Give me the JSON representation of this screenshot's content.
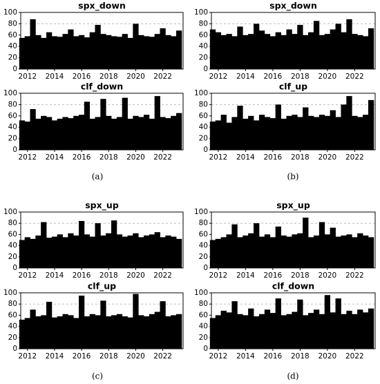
{
  "chart_data": [
    {
      "type": "bar",
      "title": "spx_down",
      "color": "#000000",
      "xlim": [
        2011.5,
        2023.5
      ],
      "ylim": [
        0,
        100
      ],
      "xticks": [
        2012,
        2014,
        2016,
        2018,
        2020,
        2022
      ],
      "yticks": [
        0,
        20,
        40,
        60,
        80,
        100
      ],
      "hline": 80,
      "x": [
        2011.6,
        2012.0,
        2012.4,
        2012.8,
        2013.2,
        2013.6,
        2014.0,
        2014.4,
        2014.8,
        2015.2,
        2015.6,
        2016.0,
        2016.4,
        2016.8,
        2017.2,
        2017.6,
        2018.0,
        2018.4,
        2018.8,
        2019.2,
        2019.6,
        2020.0,
        2020.4,
        2020.8,
        2021.2,
        2021.6,
        2022.0,
        2022.4,
        2022.8,
        2023.2
      ],
      "values": [
        55,
        58,
        88,
        60,
        55,
        65,
        58,
        57,
        62,
        70,
        58,
        60,
        56,
        65,
        78,
        62,
        60,
        58,
        57,
        62,
        55,
        80,
        60,
        58,
        57,
        62,
        72,
        60,
        58,
        68
      ]
    },
    {
      "type": "bar",
      "title": "clf_down",
      "color": "#000000",
      "xlim": [
        2011.5,
        2023.5
      ],
      "ylim": [
        0,
        100
      ],
      "xticks": [
        2012,
        2014,
        2016,
        2018,
        2020,
        2022
      ],
      "yticks": [
        0,
        20,
        40,
        60,
        80,
        100
      ],
      "hline": 80,
      "x": [
        2011.6,
        2012.0,
        2012.4,
        2012.8,
        2013.2,
        2013.6,
        2014.0,
        2014.4,
        2014.8,
        2015.2,
        2015.6,
        2016.0,
        2016.4,
        2016.8,
        2017.2,
        2017.6,
        2018.0,
        2018.4,
        2018.8,
        2019.2,
        2019.6,
        2020.0,
        2020.4,
        2020.8,
        2021.2,
        2021.6,
        2022.0,
        2022.4,
        2022.8,
        2023.2
      ],
      "values": [
        52,
        50,
        72,
        55,
        60,
        58,
        52,
        55,
        58,
        56,
        60,
        62,
        85,
        55,
        58,
        90,
        60,
        55,
        58,
        92,
        55,
        60,
        58,
        62,
        55,
        95,
        58,
        56,
        60,
        65
      ]
    },
    {
      "type": "bar",
      "title": "spx_down",
      "color": "#000000",
      "xlim": [
        2011.5,
        2023.5
      ],
      "ylim": [
        0,
        100
      ],
      "xticks": [
        2012,
        2014,
        2016,
        2018,
        2020,
        2022
      ],
      "yticks": [
        0,
        20,
        40,
        60,
        80,
        100
      ],
      "hline": 80,
      "x": [
        2011.6,
        2012.0,
        2012.4,
        2012.8,
        2013.2,
        2013.6,
        2014.0,
        2014.4,
        2014.8,
        2015.2,
        2015.6,
        2016.0,
        2016.4,
        2016.8,
        2017.2,
        2017.6,
        2018.0,
        2018.4,
        2018.8,
        2019.2,
        2019.6,
        2020.0,
        2020.4,
        2020.8,
        2021.2,
        2021.6,
        2022.0,
        2022.4,
        2022.8,
        2023.2
      ],
      "values": [
        70,
        65,
        60,
        62,
        58,
        75,
        60,
        62,
        80,
        68,
        62,
        58,
        65,
        60,
        70,
        62,
        78,
        60,
        65,
        85,
        60,
        62,
        70,
        80,
        65,
        88,
        62,
        60,
        58,
        72
      ]
    },
    {
      "type": "bar",
      "title": "clf_up",
      "color": "#000000",
      "xlim": [
        2011.5,
        2023.5
      ],
      "ylim": [
        0,
        100
      ],
      "xticks": [
        2012,
        2014,
        2016,
        2018,
        2020,
        2022
      ],
      "yticks": [
        0,
        20,
        40,
        60,
        80,
        100
      ],
      "hline": 80,
      "x": [
        2011.6,
        2012.0,
        2012.4,
        2012.8,
        2013.2,
        2013.6,
        2014.0,
        2014.4,
        2014.8,
        2015.2,
        2015.6,
        2016.0,
        2016.4,
        2016.8,
        2017.2,
        2017.6,
        2018.0,
        2018.4,
        2018.8,
        2019.2,
        2019.6,
        2020.0,
        2020.4,
        2020.8,
        2021.2,
        2021.6,
        2022.0,
        2022.4,
        2022.8,
        2023.2
      ],
      "values": [
        50,
        52,
        62,
        48,
        58,
        78,
        55,
        60,
        52,
        62,
        58,
        56,
        80,
        55,
        60,
        62,
        58,
        75,
        60,
        58,
        62,
        60,
        70,
        58,
        80,
        95,
        60,
        58,
        62,
        88
      ]
    },
    {
      "type": "bar",
      "title": "spx_up",
      "color": "#000000",
      "xlim": [
        2011.5,
        2023.5
      ],
      "ylim": [
        0,
        100
      ],
      "xticks": [
        2012,
        2014,
        2016,
        2018,
        2020,
        2022
      ],
      "yticks": [
        0,
        20,
        40,
        60,
        80,
        100
      ],
      "hline": 80,
      "x": [
        2011.6,
        2012.0,
        2012.4,
        2012.8,
        2013.2,
        2013.6,
        2014.0,
        2014.4,
        2014.8,
        2015.2,
        2015.6,
        2016.0,
        2016.4,
        2016.8,
        2017.2,
        2017.6,
        2018.0,
        2018.4,
        2018.8,
        2019.2,
        2019.6,
        2020.0,
        2020.4,
        2020.8,
        2021.2,
        2021.6,
        2022.0,
        2022.4,
        2022.8,
        2023.2
      ],
      "values": [
        50,
        55,
        52,
        58,
        82,
        54,
        56,
        60,
        55,
        62,
        58,
        84,
        60,
        56,
        80,
        58,
        62,
        85,
        60,
        56,
        58,
        62,
        55,
        58,
        60,
        64,
        55,
        58,
        56,
        52
      ]
    },
    {
      "type": "bar",
      "title": "clf_up",
      "color": "#000000",
      "xlim": [
        2011.5,
        2023.5
      ],
      "ylim": [
        0,
        100
      ],
      "xticks": [
        2012,
        2014,
        2016,
        2018,
        2020,
        2022
      ],
      "yticks": [
        0,
        20,
        40,
        60,
        80,
        100
      ],
      "hline": 80,
      "x": [
        2011.6,
        2012.0,
        2012.4,
        2012.8,
        2013.2,
        2013.6,
        2014.0,
        2014.4,
        2014.8,
        2015.2,
        2015.6,
        2016.0,
        2016.4,
        2016.8,
        2017.2,
        2017.6,
        2018.0,
        2018.4,
        2018.8,
        2019.2,
        2019.6,
        2020.0,
        2020.4,
        2020.8,
        2021.2,
        2021.6,
        2022.0,
        2022.4,
        2022.8,
        2023.2
      ],
      "values": [
        52,
        55,
        70,
        58,
        60,
        84,
        56,
        58,
        62,
        60,
        55,
        95,
        58,
        62,
        60,
        86,
        58,
        60,
        62,
        58,
        56,
        98,
        60,
        58,
        62,
        66,
        85,
        58,
        60,
        62
      ]
    },
    {
      "type": "bar",
      "title": "spx_up",
      "color": "#000000",
      "xlim": [
        2011.5,
        2023.5
      ],
      "ylim": [
        0,
        100
      ],
      "xticks": [
        2012,
        2014,
        2016,
        2018,
        2020,
        2022
      ],
      "yticks": [
        0,
        20,
        40,
        60,
        80,
        100
      ],
      "hline": 80,
      "x": [
        2011.6,
        2012.0,
        2012.4,
        2012.8,
        2013.2,
        2013.6,
        2014.0,
        2014.4,
        2014.8,
        2015.2,
        2015.6,
        2016.0,
        2016.4,
        2016.8,
        2017.2,
        2017.6,
        2018.0,
        2018.4,
        2018.8,
        2019.2,
        2019.6,
        2020.0,
        2020.4,
        2020.8,
        2021.2,
        2021.6,
        2022.0,
        2022.4,
        2022.8,
        2023.2
      ],
      "values": [
        50,
        52,
        55,
        60,
        78,
        55,
        58,
        62,
        80,
        56,
        60,
        55,
        74,
        58,
        56,
        60,
        62,
        90,
        55,
        58,
        82,
        60,
        72,
        56,
        58,
        60,
        55,
        62,
        58,
        55
      ]
    },
    {
      "type": "bar",
      "title": "clf_down",
      "color": "#000000",
      "xlim": [
        2011.5,
        2023.5
      ],
      "ylim": [
        0,
        100
      ],
      "xticks": [
        2012,
        2014,
        2016,
        2018,
        2020,
        2022
      ],
      "yticks": [
        0,
        20,
        40,
        60,
        80,
        100
      ],
      "hline": 80,
      "x": [
        2011.6,
        2012.0,
        2012.4,
        2012.8,
        2013.2,
        2013.6,
        2014.0,
        2014.4,
        2014.8,
        2015.2,
        2015.6,
        2016.0,
        2016.4,
        2016.8,
        2017.2,
        2017.6,
        2018.0,
        2018.4,
        2018.8,
        2019.2,
        2019.6,
        2020.0,
        2020.4,
        2020.8,
        2021.2,
        2021.6,
        2022.0,
        2022.4,
        2022.8,
        2023.2
      ],
      "values": [
        55,
        60,
        68,
        65,
        85,
        62,
        60,
        72,
        58,
        62,
        70,
        64,
        90,
        60,
        62,
        66,
        88,
        60,
        64,
        70,
        62,
        96,
        65,
        90,
        62,
        68,
        62,
        70,
        65,
        72
      ]
    }
  ],
  "captions": [
    "(a)",
    "(b)",
    "(c)",
    "(d)"
  ]
}
